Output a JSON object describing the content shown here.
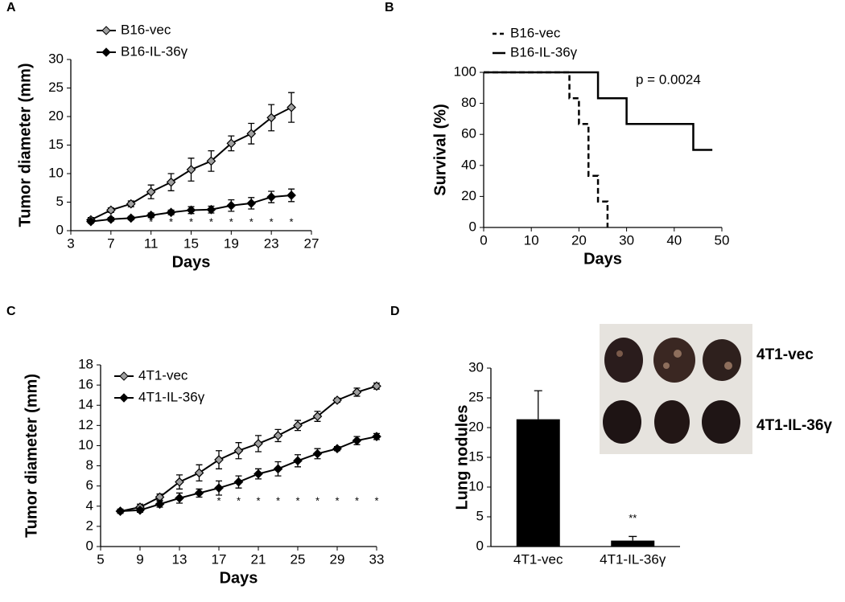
{
  "chart_data": [
    {
      "type": "line",
      "panel": "A",
      "xlabel": "Days",
      "ylabel": "Tumor diameter (mm)",
      "x": [
        5,
        7,
        9,
        11,
        13,
        15,
        17,
        19,
        21,
        23,
        25
      ],
      "series": [
        {
          "name": "B16-vec",
          "color": "#000000",
          "marker_fill": "#a0a0a0",
          "values": [
            1.9,
            3.6,
            4.7,
            6.8,
            8.5,
            10.7,
            12.2,
            15.3,
            17.0,
            19.8,
            21.6
          ],
          "errors": [
            0.4,
            0.4,
            0.5,
            1.2,
            1.5,
            2.0,
            1.8,
            1.3,
            1.8,
            2.3,
            2.6
          ]
        },
        {
          "name": "B16-IL-36γ",
          "color": "#000000",
          "marker_fill": "#000000",
          "values": [
            1.6,
            2.0,
            2.2,
            2.7,
            3.2,
            3.6,
            3.7,
            4.4,
            4.8,
            5.9,
            6.2
          ],
          "errors": [
            0.3,
            0.3,
            0.3,
            0.4,
            0.4,
            0.6,
            0.6,
            1.0,
            1.0,
            1.0,
            1.1
          ]
        }
      ],
      "significance": {
        "label": "*",
        "x": [
          11,
          13,
          15,
          17,
          19,
          21,
          23,
          25
        ]
      },
      "xlim": [
        3,
        27
      ],
      "xticks": [
        3,
        7,
        11,
        15,
        19,
        23,
        27
      ],
      "ylim": [
        0,
        30
      ],
      "yticks": [
        0,
        5,
        10,
        15,
        20,
        25,
        30
      ]
    },
    {
      "type": "step",
      "panel": "B",
      "xlabel": "Days",
      "ylabel": "Survival  (%)",
      "annotation": "p = 0.0024",
      "series": [
        {
          "name": "B16-vec",
          "color": "#000000",
          "line_style": "dashed",
          "x": [
            0,
            18,
            20,
            22,
            24,
            26
          ],
          "values": [
            100,
            83.3,
            66.7,
            33.3,
            16.7,
            0
          ]
        },
        {
          "name": "B16-IL-36γ",
          "color": "#000000",
          "line_style": "solid",
          "x": [
            0,
            24,
            30,
            44,
            48
          ],
          "values": [
            100,
            83.3,
            66.7,
            50,
            50
          ]
        }
      ],
      "xlim": [
        0,
        50
      ],
      "xticks": [
        0,
        10,
        20,
        30,
        40,
        50
      ],
      "ylim": [
        0,
        100
      ],
      "yticks": [
        0,
        20,
        40,
        60,
        80,
        100
      ]
    },
    {
      "type": "line",
      "panel": "C",
      "xlabel": "Days",
      "ylabel": "Tumor diameter (mm)",
      "x": [
        7,
        9,
        11,
        13,
        15,
        17,
        19,
        21,
        23,
        25,
        27,
        29,
        31,
        33
      ],
      "series": [
        {
          "name": "4T1-vec",
          "color": "#000000",
          "marker_fill": "#a0a0a0",
          "values": [
            3.5,
            3.9,
            4.9,
            6.4,
            7.3,
            8.6,
            9.5,
            10.2,
            11.0,
            12.0,
            12.9,
            14.5,
            15.3,
            15.9
          ],
          "errors": [
            0.2,
            0.3,
            0.3,
            0.7,
            0.8,
            0.9,
            0.8,
            0.8,
            0.6,
            0.5,
            0.5,
            0.2,
            0.4,
            0.3
          ]
        },
        {
          "name": "4T1-IL-36γ",
          "color": "#000000",
          "marker_fill": "#000000",
          "values": [
            3.5,
            3.6,
            4.2,
            4.8,
            5.3,
            5.8,
            6.4,
            7.2,
            7.7,
            8.5,
            9.2,
            9.7,
            10.5,
            10.9
          ],
          "errors": [
            0.2,
            0.2,
            0.3,
            0.5,
            0.4,
            0.7,
            0.6,
            0.5,
            0.7,
            0.6,
            0.5,
            0.2,
            0.4,
            0.3
          ]
        }
      ],
      "significance": {
        "label": "*",
        "x": [
          17,
          19,
          21,
          23,
          25,
          27,
          29,
          31,
          33
        ]
      },
      "xlim": [
        5,
        33
      ],
      "xticks": [
        5,
        9,
        13,
        17,
        21,
        25,
        29,
        33
      ],
      "ylim": [
        0,
        18
      ],
      "yticks": [
        0,
        2,
        4,
        6,
        8,
        10,
        12,
        14,
        16,
        18
      ]
    },
    {
      "type": "bar",
      "panel": "D",
      "ylabel": "Lung nodules",
      "color": "#000000",
      "categories": [
        "4T1-vec",
        "4T1-IL-36γ"
      ],
      "values": [
        21.4,
        1.0
      ],
      "errors": [
        4.8,
        0.7
      ],
      "significance_labels": [
        null,
        "**"
      ],
      "photo_labels": [
        "4T1-vec",
        "4T1-IL-36γ"
      ],
      "ylim": [
        0,
        30
      ],
      "yticks": [
        0,
        5,
        10,
        15,
        20,
        25,
        30
      ]
    }
  ]
}
